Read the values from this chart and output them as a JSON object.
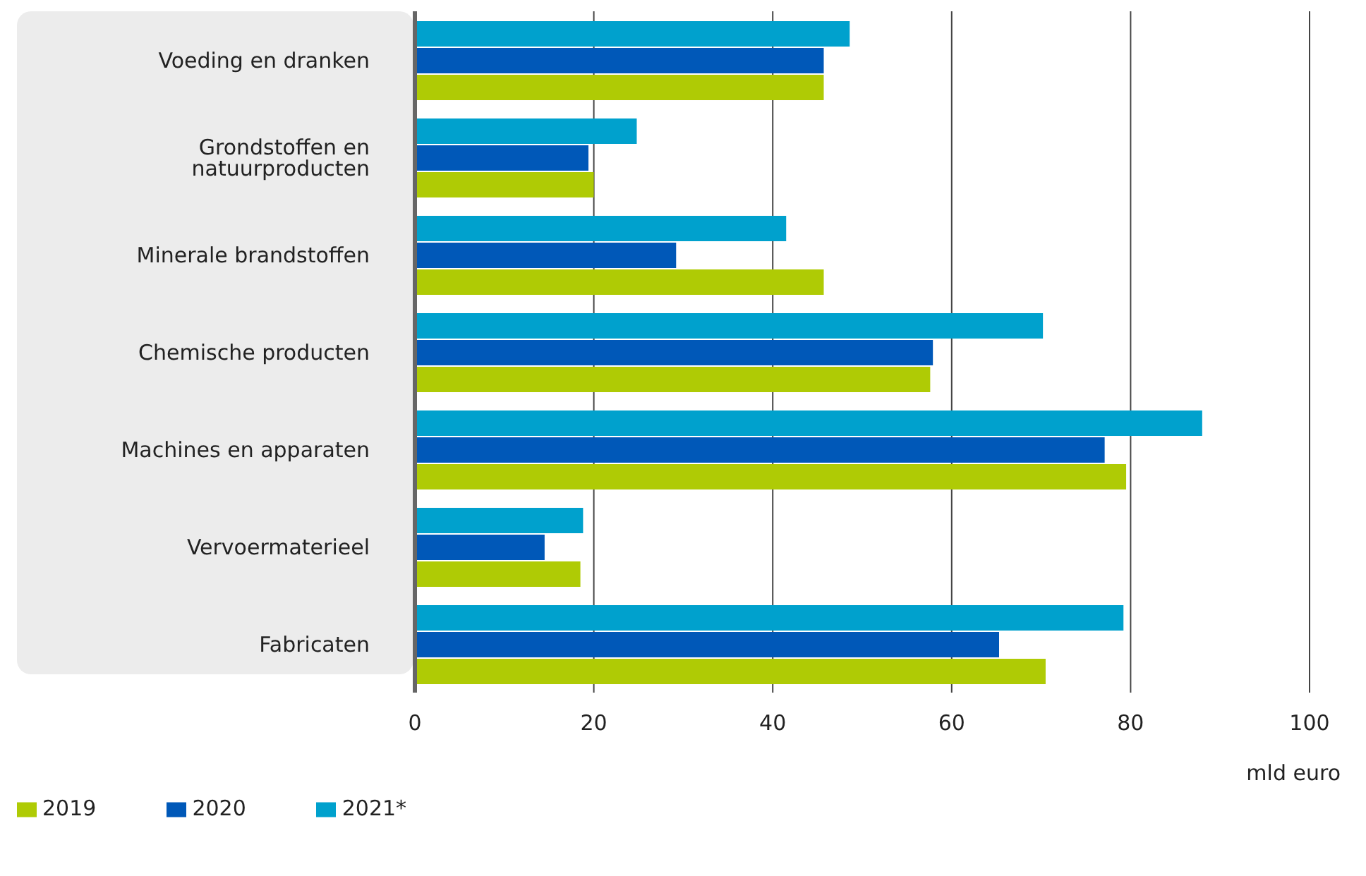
{
  "chart_data": {
    "type": "bar",
    "orientation": "horizontal",
    "xlabel": "mld euro",
    "categories": [
      "Voeding en dranken",
      "Grondstoffen en natuurproducten",
      "Minerale brandstoffen",
      "Chemische producten",
      "Machines en apparaten",
      "Vervoermaterieel",
      "Fabricaten"
    ],
    "series": [
      {
        "name": "2021*",
        "color": "#00a1cd",
        "values": [
          48.6,
          24.8,
          41.5,
          70.2,
          88.0,
          18.8,
          79.2
        ]
      },
      {
        "name": "2020",
        "color": "#0058b8",
        "values": [
          45.7,
          19.4,
          29.2,
          57.9,
          77.1,
          14.5,
          65.3
        ]
      },
      {
        "name": "2019",
        "color": "#afcb05",
        "values": [
          45.7,
          20.0,
          45.7,
          57.6,
          79.5,
          18.5,
          70.5
        ]
      }
    ],
    "xlim": [
      0,
      100
    ],
    "xticks": [
      0,
      20,
      40,
      60,
      80,
      100
    ],
    "grid": "x",
    "legend": "bottom left"
  }
}
